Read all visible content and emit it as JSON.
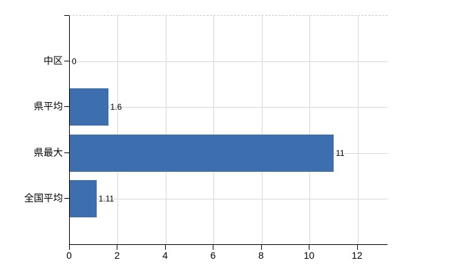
{
  "chart_data": {
    "type": "bar",
    "orientation": "horizontal",
    "title": "",
    "categories": [
      "中区",
      "県平均",
      "県最大",
      "全国平均"
    ],
    "values": [
      0,
      1.6,
      11,
      1.11
    ],
    "value_labels": [
      "0",
      "1.6",
      "11",
      "1.11"
    ],
    "x_ticks": [
      0,
      2,
      4,
      6,
      8,
      10,
      12
    ],
    "x_tick_labels": [
      "0",
      "2",
      "4",
      "6",
      "8",
      "10",
      "12"
    ],
    "xlim": [
      0,
      13.24
    ],
    "ylabel": "",
    "xlabel": "",
    "legend": "none",
    "grid": {
      "vertical_gridlines_at_x_ticks": true,
      "horizontal_gridlines_at_category_centers": true,
      "top_border_style": "dashed"
    },
    "colors": {
      "bar": "#3d6fae",
      "gridline": "#d8d8d8",
      "axis": "#000000",
      "text": "#000000",
      "background": "#ffffff"
    }
  }
}
